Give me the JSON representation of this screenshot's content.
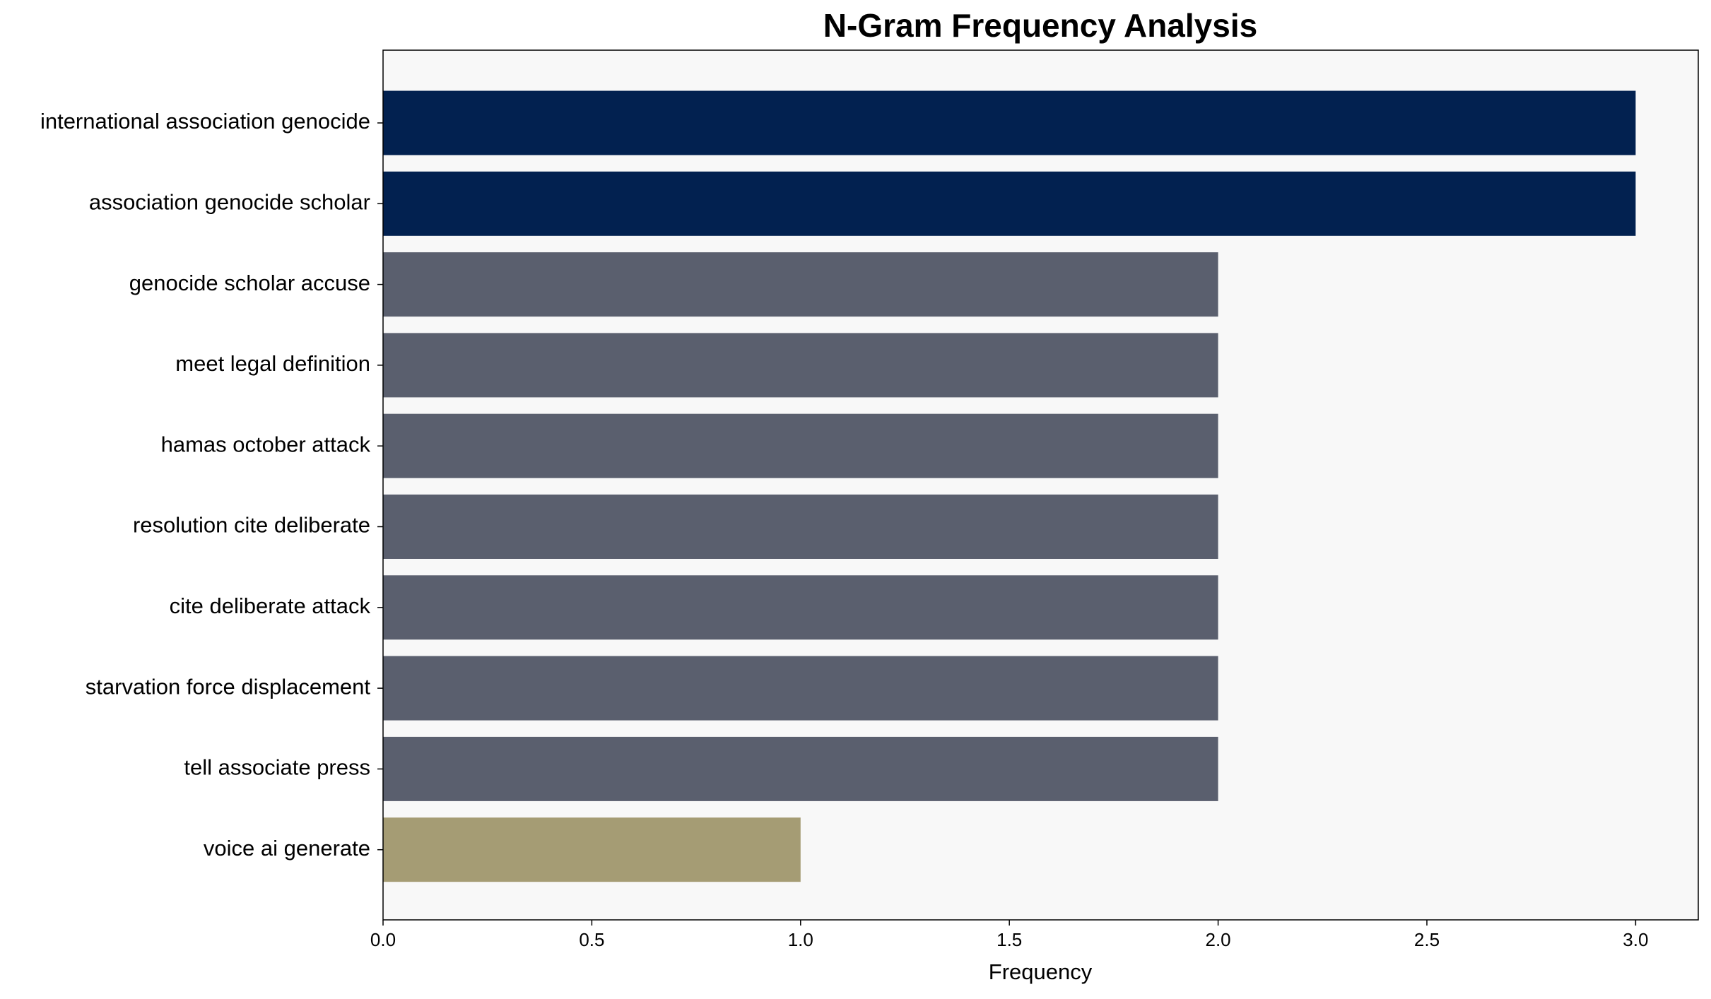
{
  "chart_data": {
    "type": "barh",
    "title": "N-Gram Frequency Analysis",
    "xlabel": "Frequency",
    "categories": [
      "international association genocide",
      "association genocide scholar",
      "genocide scholar accuse",
      "meet legal definition",
      "hamas october attack",
      "resolution cite deliberate",
      "cite deliberate attack",
      "starvation force displacement",
      "tell associate press",
      "voice ai generate"
    ],
    "values": [
      3,
      3,
      2,
      2,
      2,
      2,
      2,
      2,
      2,
      1
    ],
    "colors": [
      "#022150",
      "#022150",
      "#5a5f6e",
      "#5a5f6e",
      "#5a5f6e",
      "#5a5f6e",
      "#5a5f6e",
      "#5a5f6e",
      "#5a5f6e",
      "#a59c74"
    ],
    "xlim": [
      0,
      3.15
    ],
    "xticks": [
      {
        "value": 0,
        "label": "0.0"
      },
      0.5,
      {
        "value": 1,
        "label": "1.0"
      },
      1.5,
      {
        "value": 2,
        "label": "2.0"
      },
      2.5,
      {
        "value": 3,
        "label": "3.0"
      }
    ],
    "grid": false
  }
}
